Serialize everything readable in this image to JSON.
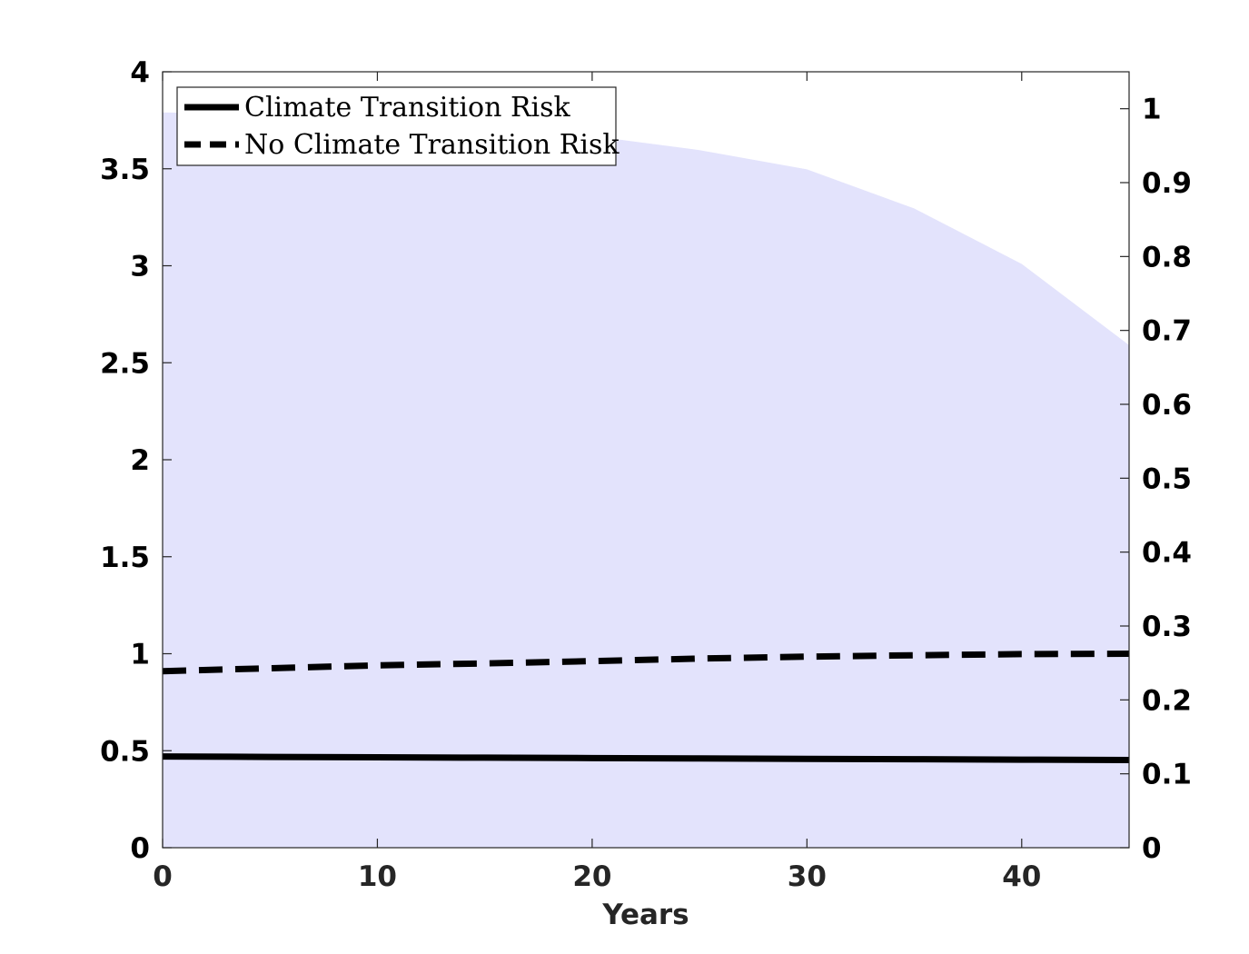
{
  "chart_data": {
    "type": "line",
    "xlabel": "Years",
    "ylabel": "",
    "y2label": "",
    "xlim": [
      0,
      45
    ],
    "ylim": [
      0,
      4
    ],
    "y2lim": [
      0,
      1.05
    ],
    "xticks": [
      0,
      10,
      20,
      30,
      40
    ],
    "xtick_labels": [
      "0",
      "10",
      "20",
      "30",
      "40"
    ],
    "yticks": [
      0,
      0.5,
      1,
      1.5,
      2,
      2.5,
      3,
      3.5,
      4
    ],
    "ytick_labels": [
      "0",
      "0.5",
      "1",
      "1.5",
      "2",
      "2.5",
      "3",
      "3.5",
      "4"
    ],
    "y2ticks": [
      0,
      0.1,
      0.2,
      0.3,
      0.4,
      0.5,
      0.6,
      0.7,
      0.8,
      0.9,
      1
    ],
    "y2tick_labels": [
      "0",
      "0.1",
      "0.2",
      "0.3",
      "0.4",
      "0.5",
      "0.6",
      "0.7",
      "0.8",
      "0.9",
      "1"
    ],
    "legend_position": "top-left",
    "grid": false,
    "area": {
      "axis": "right",
      "color": "#e3e3fc",
      "x": [
        0,
        5,
        10,
        15,
        20,
        25,
        30,
        35,
        40,
        45
      ],
      "values": [
        0.995,
        0.993,
        0.987,
        0.977,
        0.963,
        0.944,
        0.918,
        0.865,
        0.79,
        0.68
      ]
    },
    "series": [
      {
        "name": "Climate Transition Risk",
        "axis": "left",
        "style": "solid",
        "color": "#000000",
        "x": [
          0,
          5,
          10,
          15,
          20,
          25,
          30,
          35,
          40,
          45
        ],
        "values": [
          0.47,
          0.468,
          0.466,
          0.464,
          0.462,
          0.46,
          0.458,
          0.456,
          0.454,
          0.452
        ]
      },
      {
        "name": "No Climate Transition Risk",
        "axis": "left",
        "style": "dashed",
        "color": "#000000",
        "x": [
          0,
          5,
          10,
          15,
          20,
          25,
          30,
          35,
          40,
          45
        ],
        "values": [
          0.91,
          0.925,
          0.94,
          0.95,
          0.962,
          0.975,
          0.985,
          0.992,
          0.998,
          1.0
        ]
      }
    ]
  }
}
